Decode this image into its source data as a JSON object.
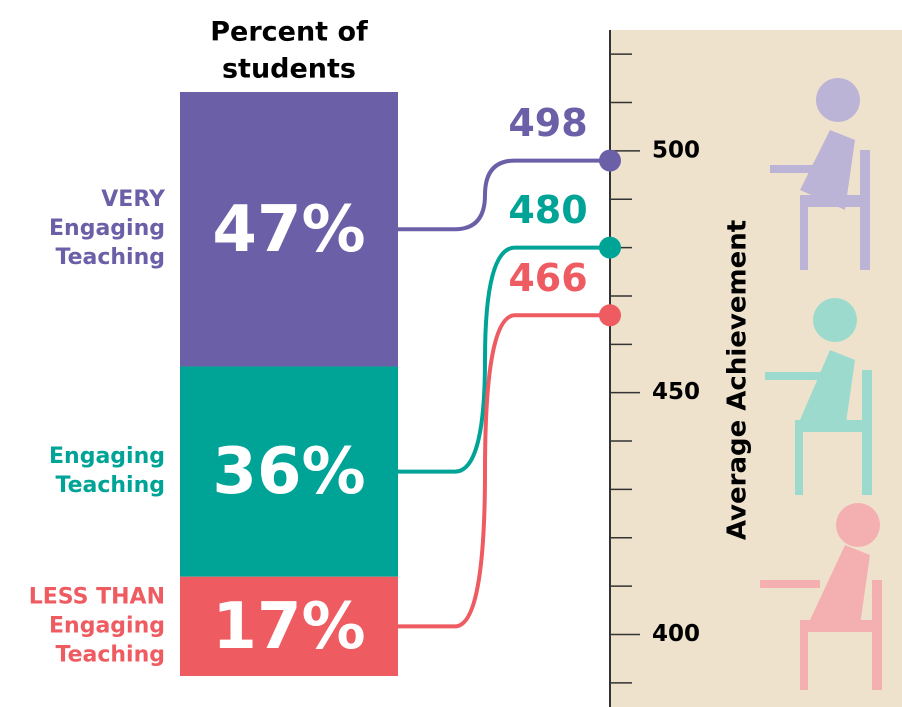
{
  "chart_data": {
    "type": "stacked-bar-with-scale",
    "title": [
      "Percent of",
      "students"
    ],
    "categories": [
      [
        "VERY",
        "Engaging",
        "Teaching"
      ],
      [
        "Engaging",
        "Teaching"
      ],
      [
        "LESS THAN",
        "Engaging",
        "Teaching"
      ]
    ],
    "colors": [
      "#6b60a8",
      "#00a497",
      "#ee5b60"
    ],
    "values": [
      47,
      36,
      17
    ],
    "value_labels": [
      "47%",
      "36%",
      "17%"
    ],
    "achievement": {
      "label": "Average Achievement",
      "values": [
        498,
        480,
        466
      ],
      "ylim": [
        385,
        525
      ],
      "yticks": [
        400,
        450,
        500
      ],
      "minor_ticks": [
        390,
        410,
        420,
        430,
        440,
        460,
        470,
        480,
        490,
        510,
        520
      ]
    }
  }
}
